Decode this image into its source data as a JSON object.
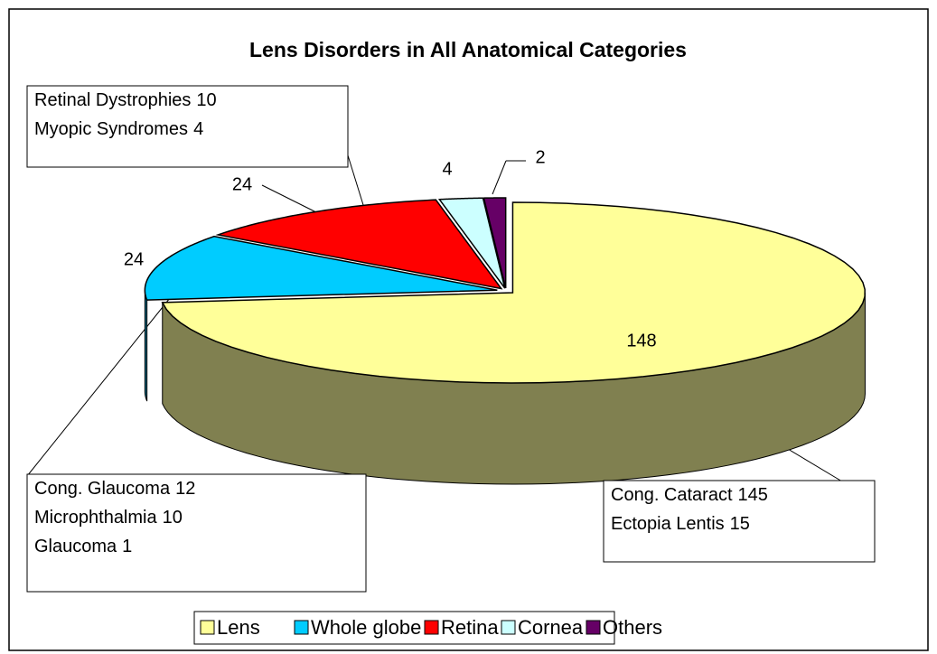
{
  "chart_data": {
    "type": "pie",
    "title": "Lens Disorders in All Anatomical Categories",
    "categories": [
      "Lens",
      "Whole globe",
      "Retina",
      "Cornea",
      "Others"
    ],
    "values": [
      148,
      24,
      24,
      4,
      2
    ],
    "colors": [
      "#ffff99",
      "#00ccff",
      "#ff0000",
      "#ccffff",
      "#660066"
    ],
    "side_colors": [
      "#808050",
      "#006680",
      "#800000",
      "#668080",
      "#330033"
    ],
    "legend": "bottom",
    "annotations": [
      {
        "lines": [
          {
            "name": "Retinal Dystrophies",
            "value": 10
          },
          {
            "name": "Myopic Syndromes",
            "value": 4
          }
        ]
      },
      {
        "lines": [
          {
            "name": "Cong. Glaucoma",
            "value": 12
          },
          {
            "name": "Microphthalmia",
            "value": 10
          },
          {
            "name": "Glaucoma",
            "value": 1
          }
        ]
      },
      {
        "lines": [
          {
            "name": "Cong. Cataract",
            "value": 145
          },
          {
            "name": "Ectopia Lentis",
            "value": 15
          }
        ]
      }
    ]
  }
}
